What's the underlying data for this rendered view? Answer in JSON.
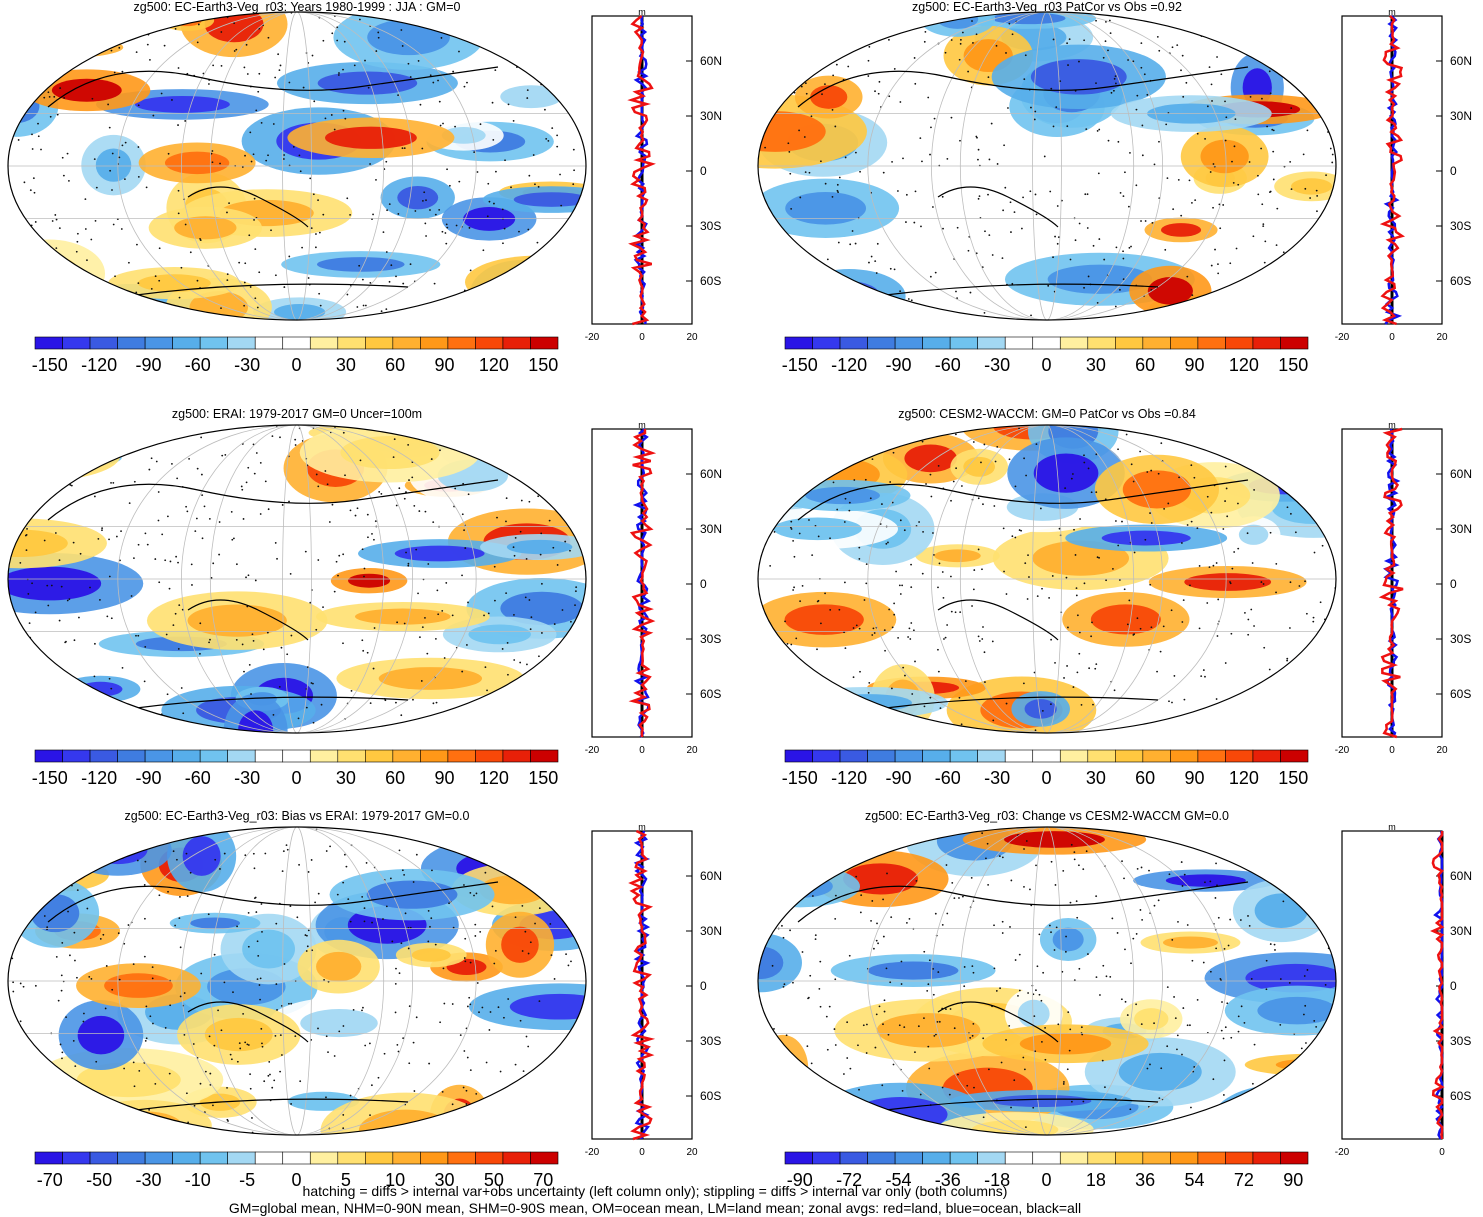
{
  "footer": {
    "line1": "hatching = diffs > internal var+obs uncertainty (left column only); stippling = diffs > internal var only (both columns)",
    "line2": "GM=global mean, NHM=0-90N mean, SHM=0-90S mean, OM=ocean mean, LM=land mean; zonal avgs: red=land, blue=ocean, black=all"
  },
  "colors": {
    "land_profile": "#ee1111",
    "ocean_profile": "#1111ee",
    "all_profile": "#000000",
    "palette": [
      "#2a14e6",
      "#3538ee",
      "#3a5ae2",
      "#3f7ce0",
      "#4a95e6",
      "#57aeea",
      "#70c3ef",
      "#a3d8f3",
      "#ffffff",
      "#ffffff",
      "#fff0a0",
      "#ffe070",
      "#ffc840",
      "#ffb030",
      "#ff9818",
      "#ff7010",
      "#f84808",
      "#e82008",
      "#cc0000"
    ]
  },
  "chart_data": [
    {
      "type": "heatmap",
      "title": "zg500: EC-Earth3-Veg_r03: Years 1980-1999 : JJA : GM=0",
      "colorbar_ticks": [
        "-150",
        "-120",
        "-90",
        "-60",
        "-30",
        "0",
        "30",
        "60",
        "90",
        "120",
        "150"
      ],
      "profile": {
        "unit": "m",
        "xlim": [
          -20,
          20
        ],
        "x_ticks": [
          "-20",
          "0",
          "20"
        ],
        "lat_ticks": [
          "60N",
          "30N",
          "0",
          "30S",
          "60S"
        ]
      }
    },
    {
      "type": "heatmap",
      "title": "zg500: EC-Earth3-Veg_r03 PatCor vs Obs =0.92",
      "colorbar_ticks": [
        "-150",
        "-120",
        "-90",
        "-60",
        "-30",
        "0",
        "30",
        "60",
        "90",
        "120",
        "150"
      ],
      "profile": {
        "unit": "m",
        "xlim": [
          -20,
          20
        ],
        "x_ticks": [
          "-20",
          "0",
          "20"
        ],
        "lat_ticks": [
          "60N",
          "30N",
          "0",
          "30S",
          "60S"
        ]
      }
    },
    {
      "type": "heatmap",
      "title": "zg500: ERAI: 1979-2017 GM=0 Uncer=100m",
      "colorbar_ticks": [
        "-150",
        "-120",
        "-90",
        "-60",
        "-30",
        "0",
        "30",
        "60",
        "90",
        "120",
        "150"
      ],
      "profile": {
        "unit": "m",
        "xlim": [
          -20,
          20
        ],
        "x_ticks": [
          "-20",
          "0",
          "20"
        ],
        "lat_ticks": [
          "60N",
          "30N",
          "0",
          "30S",
          "60S"
        ]
      }
    },
    {
      "type": "heatmap",
      "title": "zg500: CESM2-WACCM: GM=0 PatCor vs Obs =0.84",
      "colorbar_ticks": [
        "-150",
        "-120",
        "-90",
        "-60",
        "-30",
        "0",
        "30",
        "60",
        "90",
        "120",
        "150"
      ],
      "profile": {
        "unit": "m",
        "xlim": [
          -20,
          20
        ],
        "x_ticks": [
          "-20",
          "0",
          "20"
        ],
        "lat_ticks": [
          "60N",
          "30N",
          "0",
          "30S",
          "60S"
        ]
      }
    },
    {
      "type": "heatmap",
      "title": "zg500: EC-Earth3-Veg_r03: Bias vs ERAI: 1979-2017 GM=0.0",
      "colorbar_ticks": [
        "-70",
        "-50",
        "-30",
        "-10",
        "-5",
        "0",
        "5",
        "10",
        "30",
        "50",
        "70"
      ],
      "profile": {
        "unit": "m",
        "xlim": [
          -20,
          20
        ],
        "x_ticks": [
          "-20",
          "0",
          "20"
        ],
        "lat_ticks": [
          "60N",
          "30N",
          "0",
          "30S",
          "60S"
        ]
      }
    },
    {
      "type": "heatmap",
      "title": "zg500: EC-Earth3-Veg_r03: Change vs CESM2-WACCM GM=0.0",
      "colorbar_ticks": [
        "-90",
        "-72",
        "-54",
        "-36",
        "-18",
        "0",
        "18",
        "36",
        "54",
        "72",
        "90"
      ],
      "profile": {
        "unit": "m",
        "xlim": [
          -20,
          0
        ],
        "x_ticks": [
          "-20",
          "0"
        ],
        "lat_ticks": [
          "60N",
          "30N",
          "0",
          "30S",
          "60S"
        ]
      }
    }
  ]
}
